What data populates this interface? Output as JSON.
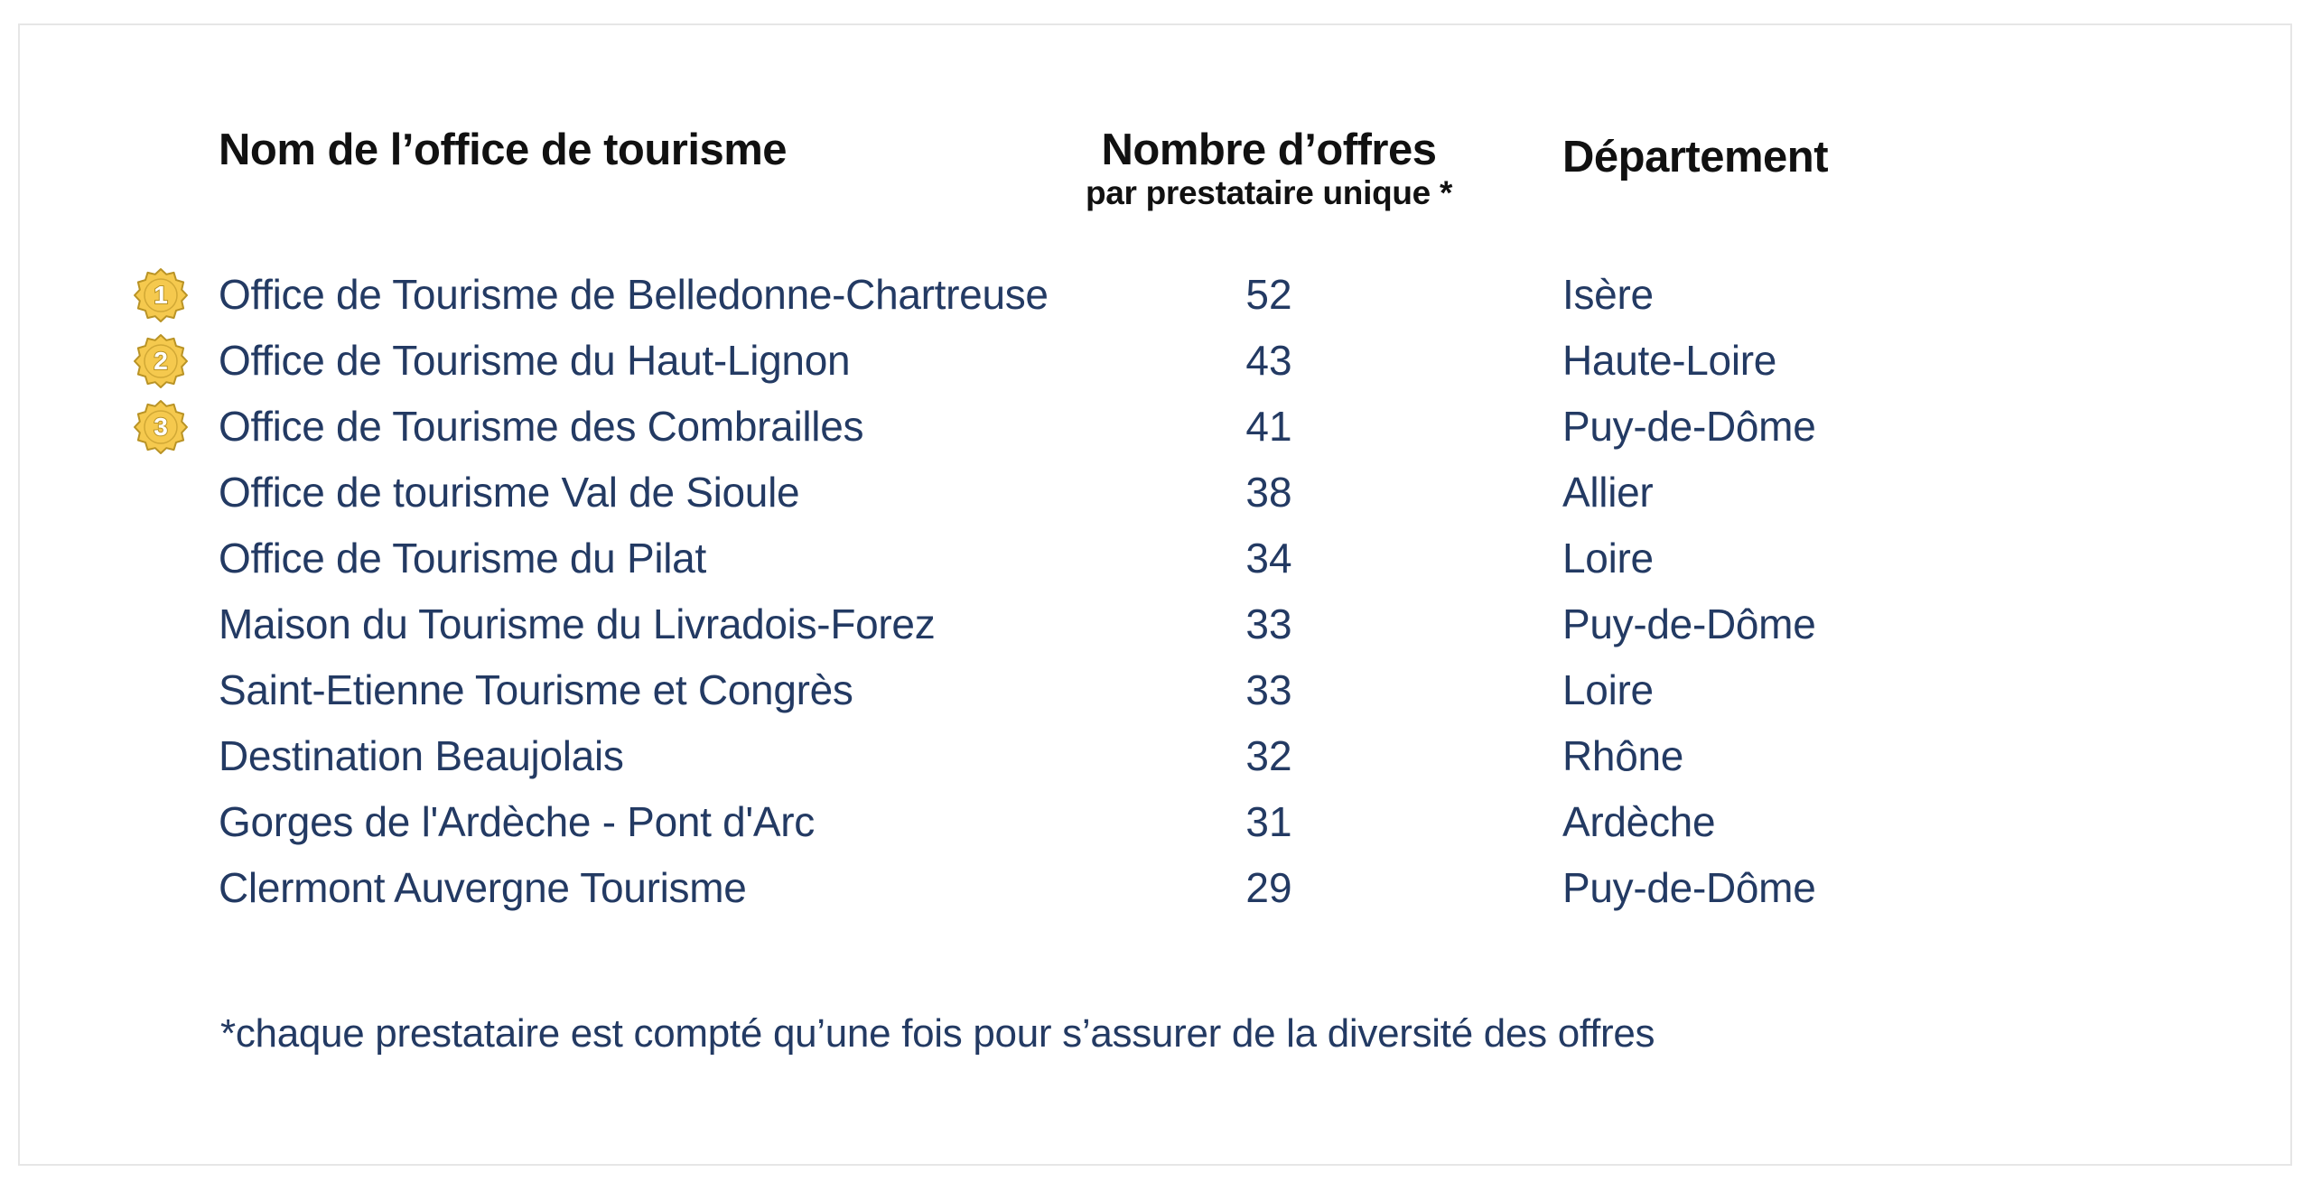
{
  "header": {
    "name": "Nom de l’office de tourisme",
    "count_main": "Nombre d’offres",
    "count_sub": "par prestataire unique *",
    "department": "Département"
  },
  "colors": {
    "text": "#233a63",
    "header_text": "#111111",
    "medal": "#f5c94e",
    "medal_outline": "#b99325"
  },
  "rows": [
    {
      "rank": "1",
      "name": "Office de Tourisme de Belledonne-Chartreuse",
      "count": "52",
      "department": "Isère"
    },
    {
      "rank": "2",
      "name": "Office de Tourisme du Haut-Lignon",
      "count": "43",
      "department": "Haute-Loire"
    },
    {
      "rank": "3",
      "name": "Office de Tourisme des Combrailles",
      "count": "41",
      "department": "Puy-de-Dôme"
    },
    {
      "rank": "",
      "name": "Office de tourisme Val de Sioule",
      "count": "38",
      "department": "Allier"
    },
    {
      "rank": "",
      "name": "Office de Tourisme du Pilat",
      "count": "34",
      "department": "Loire"
    },
    {
      "rank": "",
      "name": "Maison du Tourisme du Livradois-Forez",
      "count": "33",
      "department": "Puy-de-Dôme"
    },
    {
      "rank": "",
      "name": "Saint-Etienne Tourisme et Congrès",
      "count": "33",
      "department": "Loire"
    },
    {
      "rank": "",
      "name": "Destination Beaujolais",
      "count": "32",
      "department": "Rhône"
    },
    {
      "rank": "",
      "name": "Gorges de l'Ardèche - Pont d'Arc",
      "count": "31",
      "department": "Ardèche"
    },
    {
      "rank": "",
      "name": "Clermont Auvergne Tourisme",
      "count": "29",
      "department": "Puy-de-Dôme"
    }
  ],
  "footnote": "*chaque prestataire est compté qu’une fois pour s’assurer de la diversité des offres"
}
